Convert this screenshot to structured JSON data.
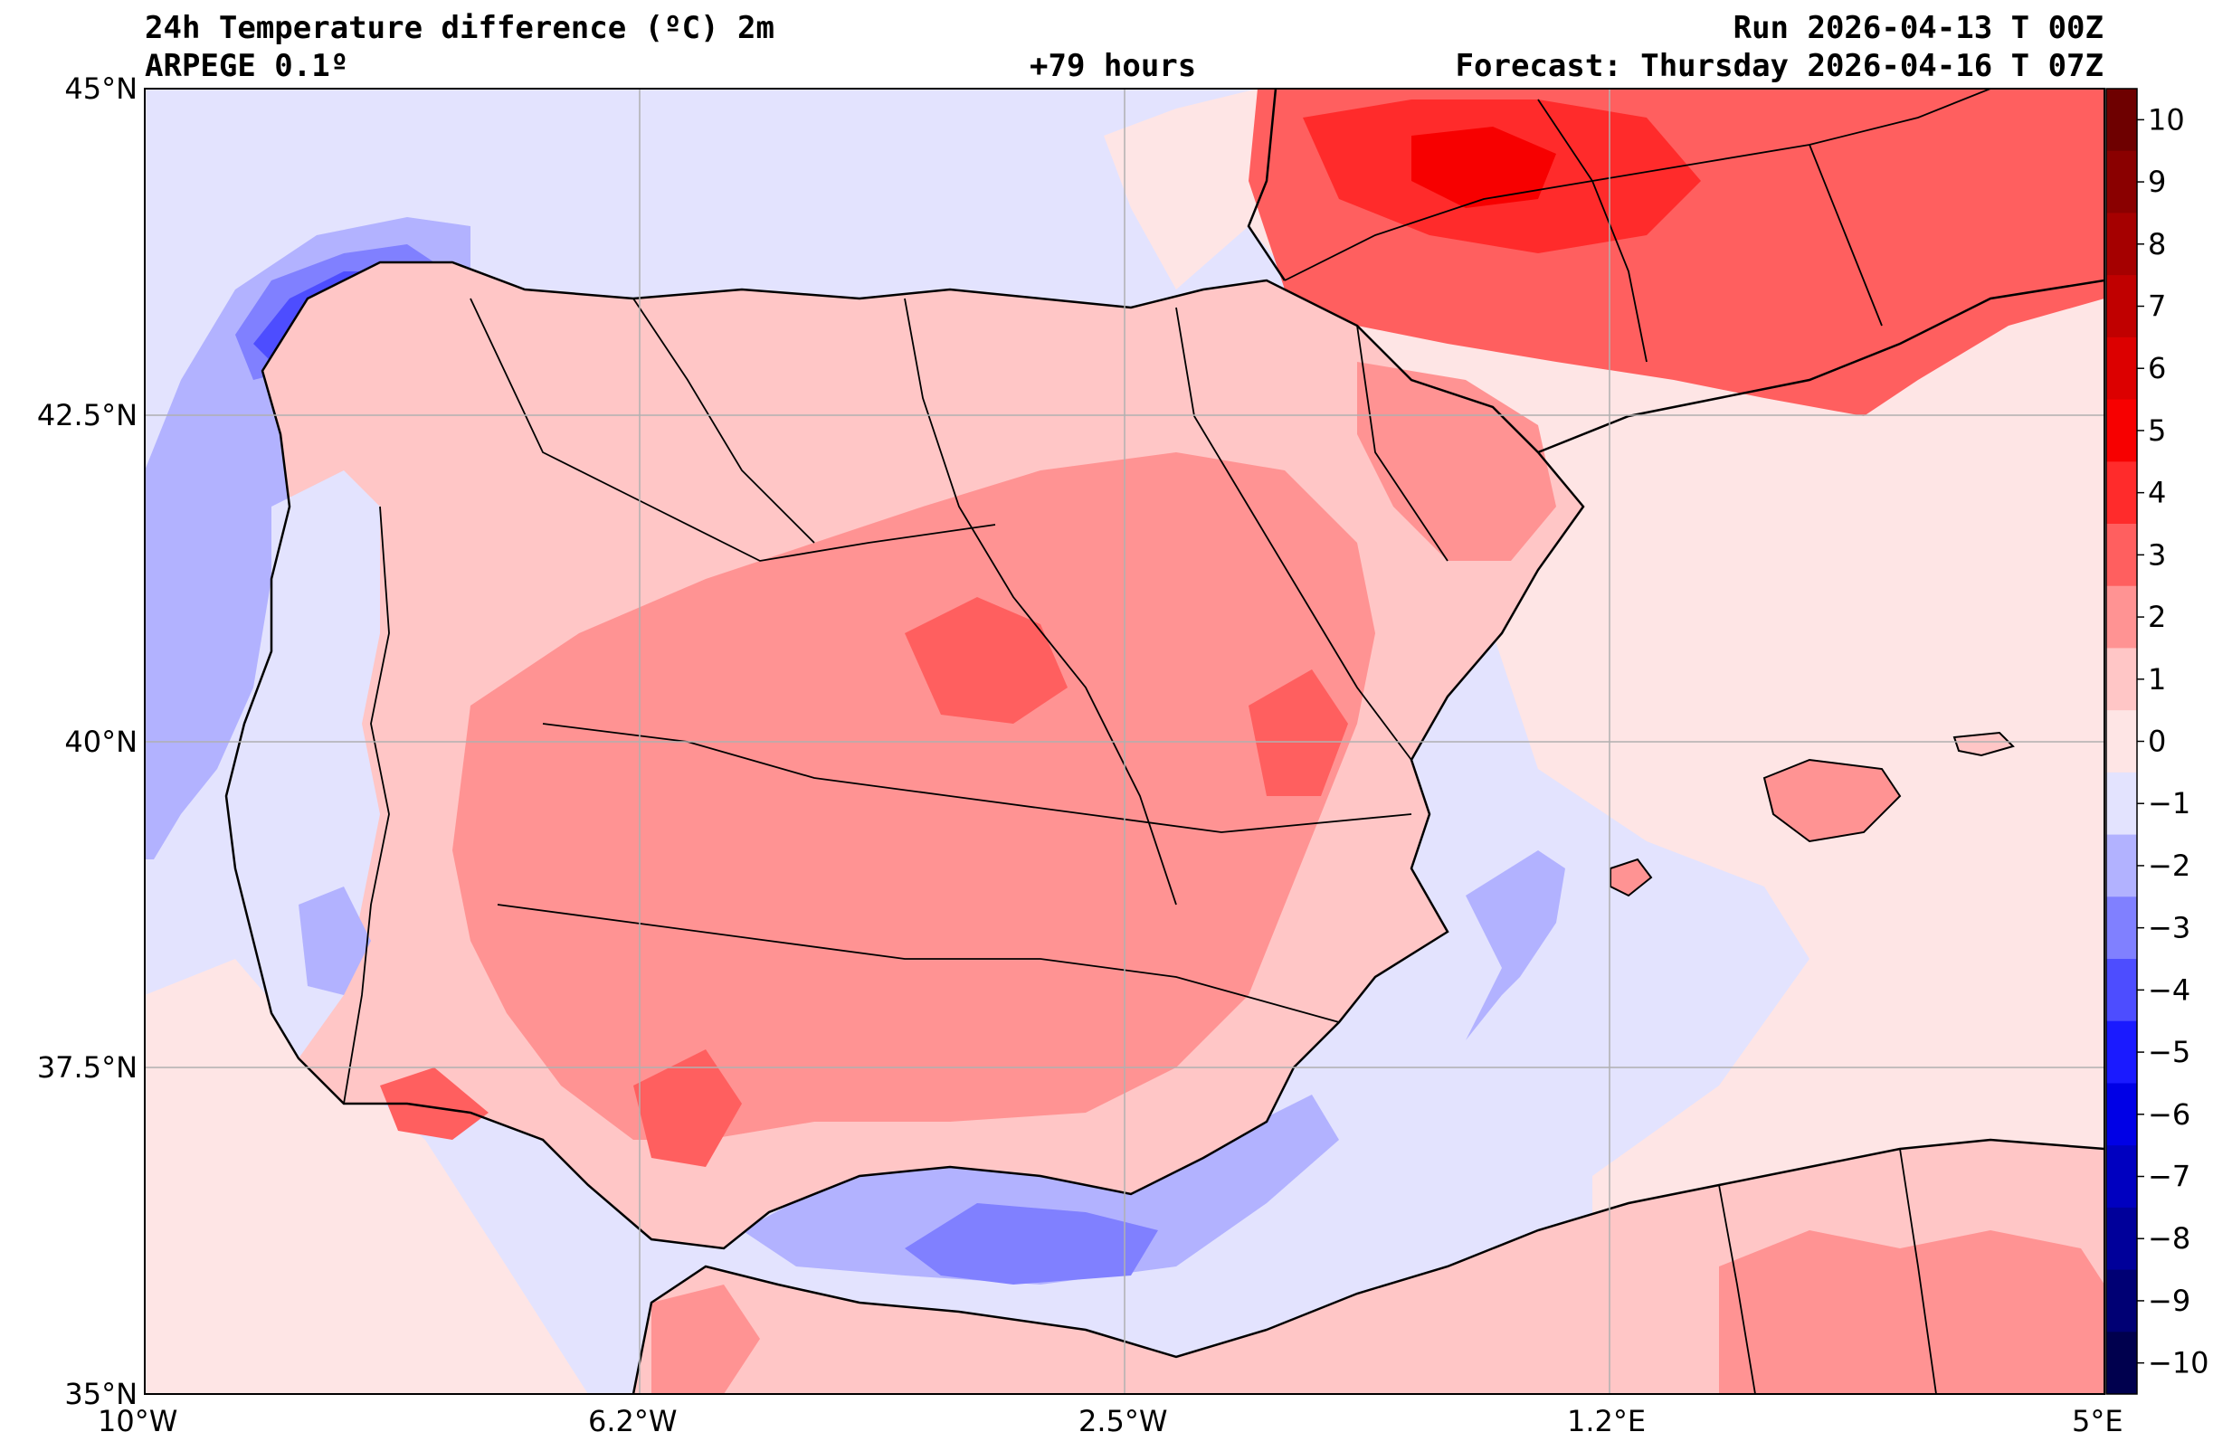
{
  "header": {
    "title": "24h Temperature difference (ºC) 2m",
    "model": "ARPEGE 0.1º",
    "lead_time": "+79 hours",
    "run": "Run 2026-04-13 T 00Z",
    "forecast": "Forecast: Thursday 2026-04-16 T 07Z"
  },
  "axes": {
    "lat_labels": [
      "45°N",
      "42.5°N",
      "40°N",
      "37.5°N",
      "35°N"
    ],
    "lon_labels": [
      "10°W",
      "6.2°W",
      "2.5°W",
      "1.2°E",
      "5°E"
    ]
  },
  "colorbar": {
    "tick_labels": [
      "10",
      "9",
      "8",
      "7",
      "6",
      "5",
      "4",
      "3",
      "2",
      "1",
      "0",
      "−1",
      "−2",
      "−3",
      "−4",
      "−5",
      "−6",
      "−7",
      "−8",
      "−9",
      "−10"
    ],
    "colors": [
      "#6e0000",
      "#8a0000",
      "#a50000",
      "#c00000",
      "#dc0000",
      "#f70000",
      "#ff2b2b",
      "#ff5f5f",
      "#ff9393",
      "#ffc6c6",
      "#fee5e5",
      "#e3e3fe",
      "#b2b2ff",
      "#8080ff",
      "#4d4dff",
      "#1a1aff",
      "#0000e6",
      "#0000c0",
      "#00009a",
      "#000074",
      "#00004e"
    ]
  },
  "map": {
    "colors": {
      "sea": "#e3e3fe",
      "neutral_pos": "#fee5e5",
      "warm1": "#ffc6c6",
      "warm2": "#ff9393",
      "warm3": "#ff5f5f",
      "warm4": "#ff2b2b",
      "warm5": "#f70000",
      "cool1": "#b2b2ff",
      "cool2": "#8080ff",
      "cool3": "#4d4dff",
      "grid": "#b0b0b0",
      "border": "#000000"
    }
  }
}
